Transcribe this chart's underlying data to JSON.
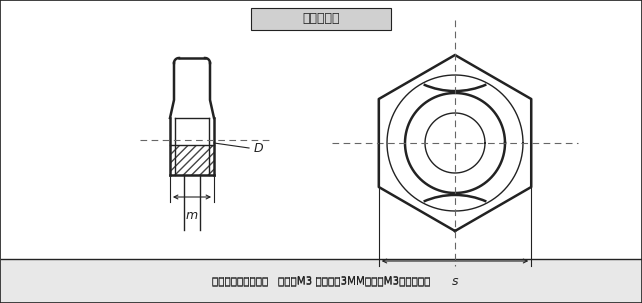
{
  "title": "图纸示意图",
  "footer_text": "规格组成：螺纹内径   例如：M3 螺纹内径3MM，配套M3的螺丝使用",
  "bg_color": "#e8e8e8",
  "main_bg": "#ffffff",
  "title_box_color": "#d0d0d0",
  "line_color": "#222222",
  "dashed_color": "#666666",
  "hatch_color": "#444444",
  "label_D": "D",
  "label_m": "m",
  "label_s": "s",
  "figw": 6.42,
  "figh": 3.03
}
